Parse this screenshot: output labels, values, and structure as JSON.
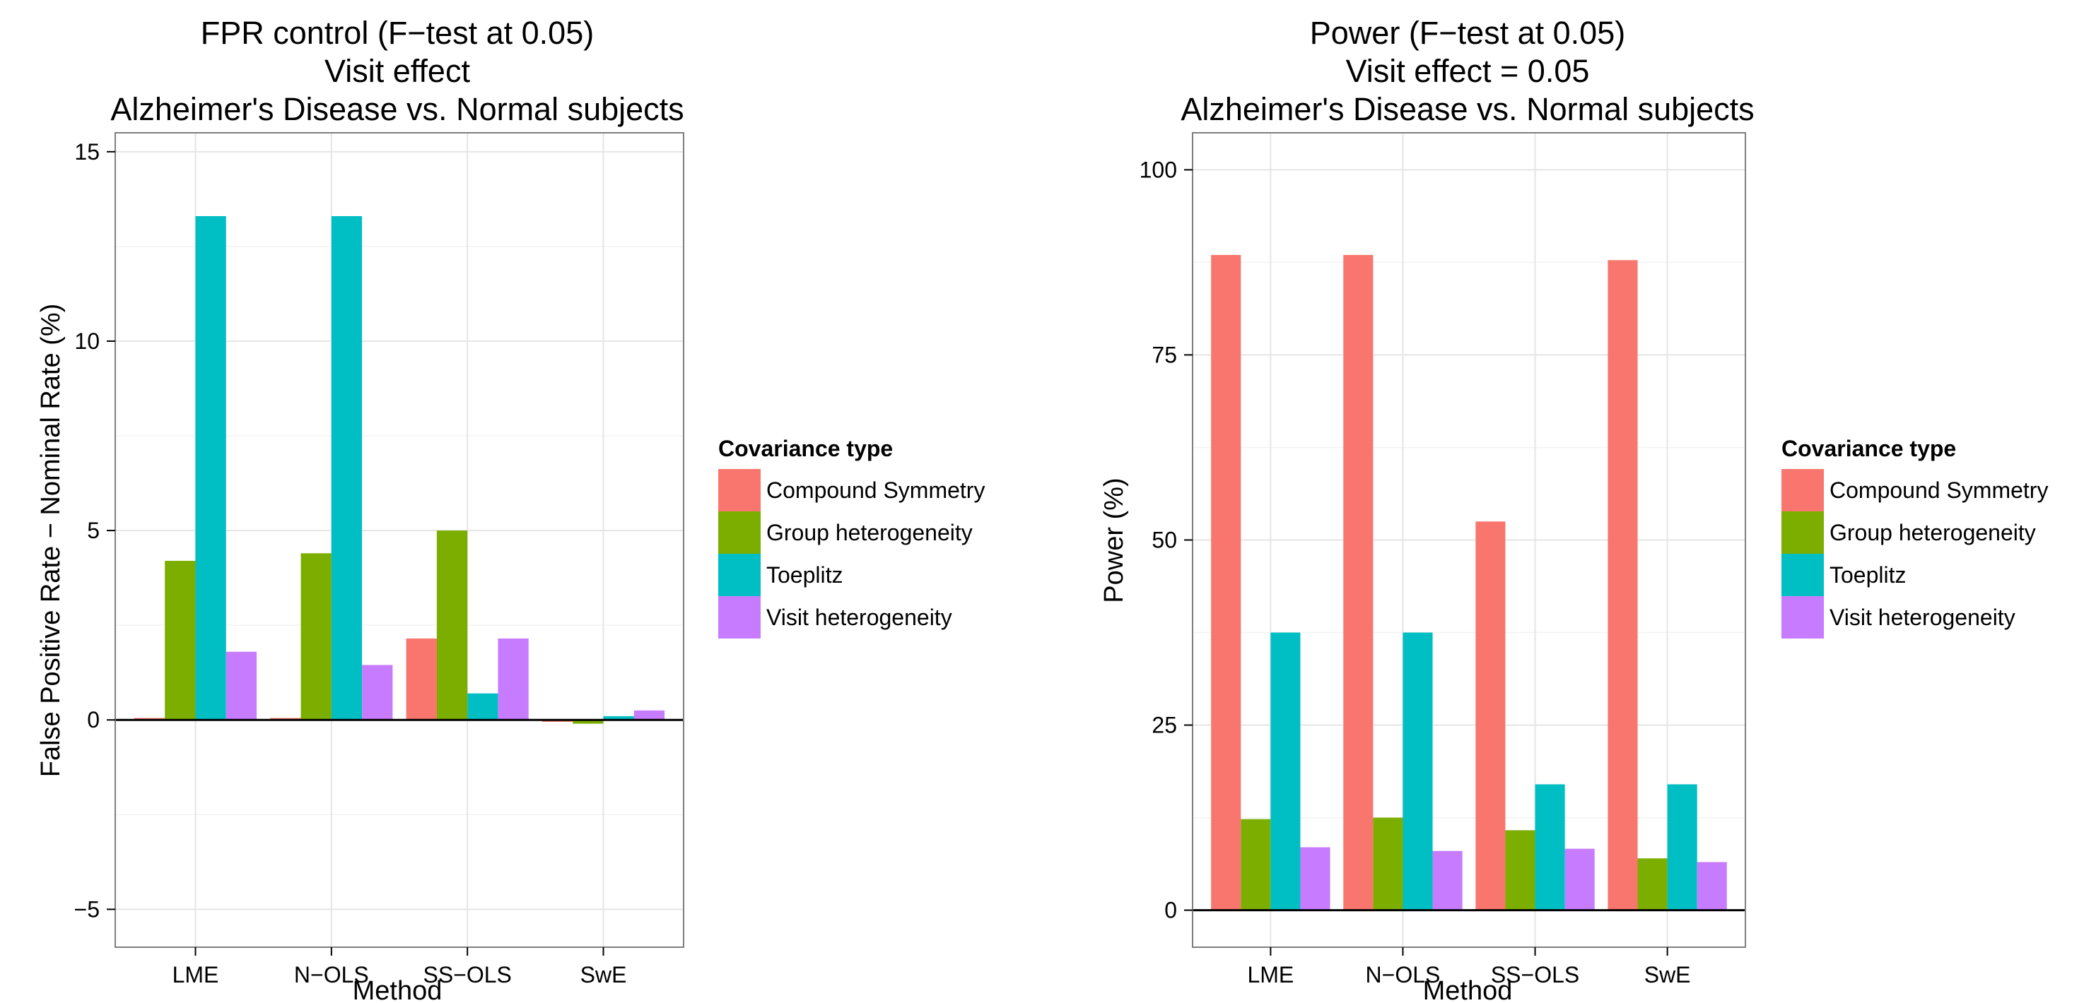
{
  "chart_data": [
    {
      "type": "bar",
      "title_lines": [
        "FPR control (F−test at 0.05)",
        "Visit effect",
        "Alzheimer's Disease vs. Normal subjects"
      ],
      "xlabel": "Method",
      "ylabel": "False Positive Rate − Nominal Rate (%)",
      "categories": [
        "LME",
        "N−OLS",
        "SS−OLS",
        "SwE"
      ],
      "ylim": [
        -6,
        15.5
      ],
      "yticks": [
        -5,
        0,
        5,
        10,
        15
      ],
      "y_tick_labels": [
        "−5",
        "0",
        "5",
        "10",
        "15"
      ],
      "grid": true,
      "legend_title": "Covariance type",
      "legend_position": "right",
      "series": [
        {
          "name": "Compound Symmetry",
          "color": "#F8766D",
          "values": [
            0.05,
            0.05,
            2.15,
            -0.05
          ]
        },
        {
          "name": "Group heterogeneity",
          "color": "#7CAE00",
          "values": [
            4.2,
            4.4,
            5.0,
            -0.1
          ]
        },
        {
          "name": "Toeplitz",
          "color": "#00BFC4",
          "values": [
            13.3,
            13.3,
            0.7,
            0.1
          ]
        },
        {
          "name": "Visit heterogeneity",
          "color": "#C77CFF",
          "values": [
            1.8,
            1.45,
            2.15,
            0.25
          ]
        }
      ]
    },
    {
      "type": "bar",
      "title_lines": [
        "Power (F−test at 0.05)",
        "Visit effect = 0.05",
        "Alzheimer's Disease vs. Normal subjects"
      ],
      "xlabel": "Method",
      "ylabel": "Power (%)",
      "categories": [
        "LME",
        "N−OLS",
        "SS−OLS",
        "SwE"
      ],
      "ylim": [
        -5,
        105
      ],
      "yticks": [
        0,
        25,
        50,
        75,
        100
      ],
      "y_tick_labels": [
        "0",
        "25",
        "50",
        "75",
        "100"
      ],
      "grid": true,
      "legend_title": "Covariance type",
      "legend_position": "right",
      "series": [
        {
          "name": "Compound Symmetry",
          "color": "#F8766D",
          "values": [
            88.5,
            88.5,
            52.5,
            87.8
          ]
        },
        {
          "name": "Group heterogeneity",
          "color": "#7CAE00",
          "values": [
            12.3,
            12.5,
            10.8,
            7.0
          ]
        },
        {
          "name": "Toeplitz",
          "color": "#00BFC4",
          "values": [
            37.5,
            37.5,
            17.0,
            17.0
          ]
        },
        {
          "name": "Visit heterogeneity",
          "color": "#C77CFF",
          "values": [
            8.5,
            8.0,
            8.3,
            6.5
          ]
        }
      ]
    }
  ]
}
